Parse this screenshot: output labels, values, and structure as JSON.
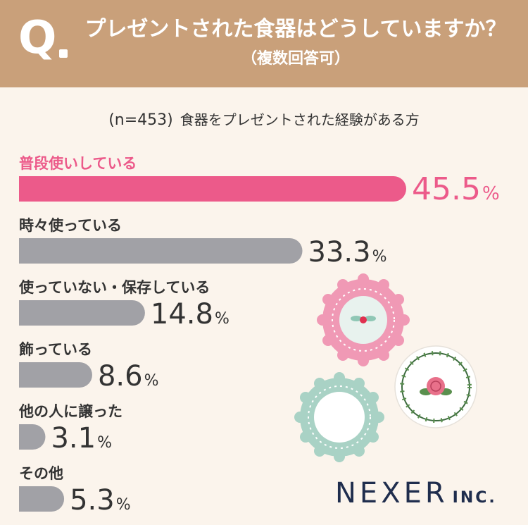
{
  "header": {
    "q_mark": "Q",
    "title": "プレゼントされた食器はどうしていますか？",
    "subtitle": "（複数回答可）"
  },
  "sample_note": {
    "n": "(n=453)",
    "description": "食器をプレゼントされた経験がある方"
  },
  "chart_data": {
    "type": "bar",
    "orientation": "horizontal",
    "unit": "%",
    "categories": [
      "普段使いしている",
      "時々使っている",
      "使っていない・保存している",
      "飾っている",
      "他の人に譲った",
      "その他"
    ],
    "values": [
      45.5,
      33.3,
      14.8,
      8.6,
      3.1,
      5.3
    ],
    "value_labels": [
      "45.5",
      "33.3",
      "14.8",
      "8.6",
      "3.1",
      "5.3"
    ],
    "highlight_index": 0,
    "colors": {
      "highlight": "#ec5a8a",
      "default": "#a1a1a6",
      "label_highlight": "#ec5a8a",
      "label_default": "#333333"
    },
    "xlim": [
      0,
      50
    ],
    "grid": false,
    "legend": "none"
  },
  "logo": {
    "name": "NEXER",
    "suffix": "INC."
  }
}
